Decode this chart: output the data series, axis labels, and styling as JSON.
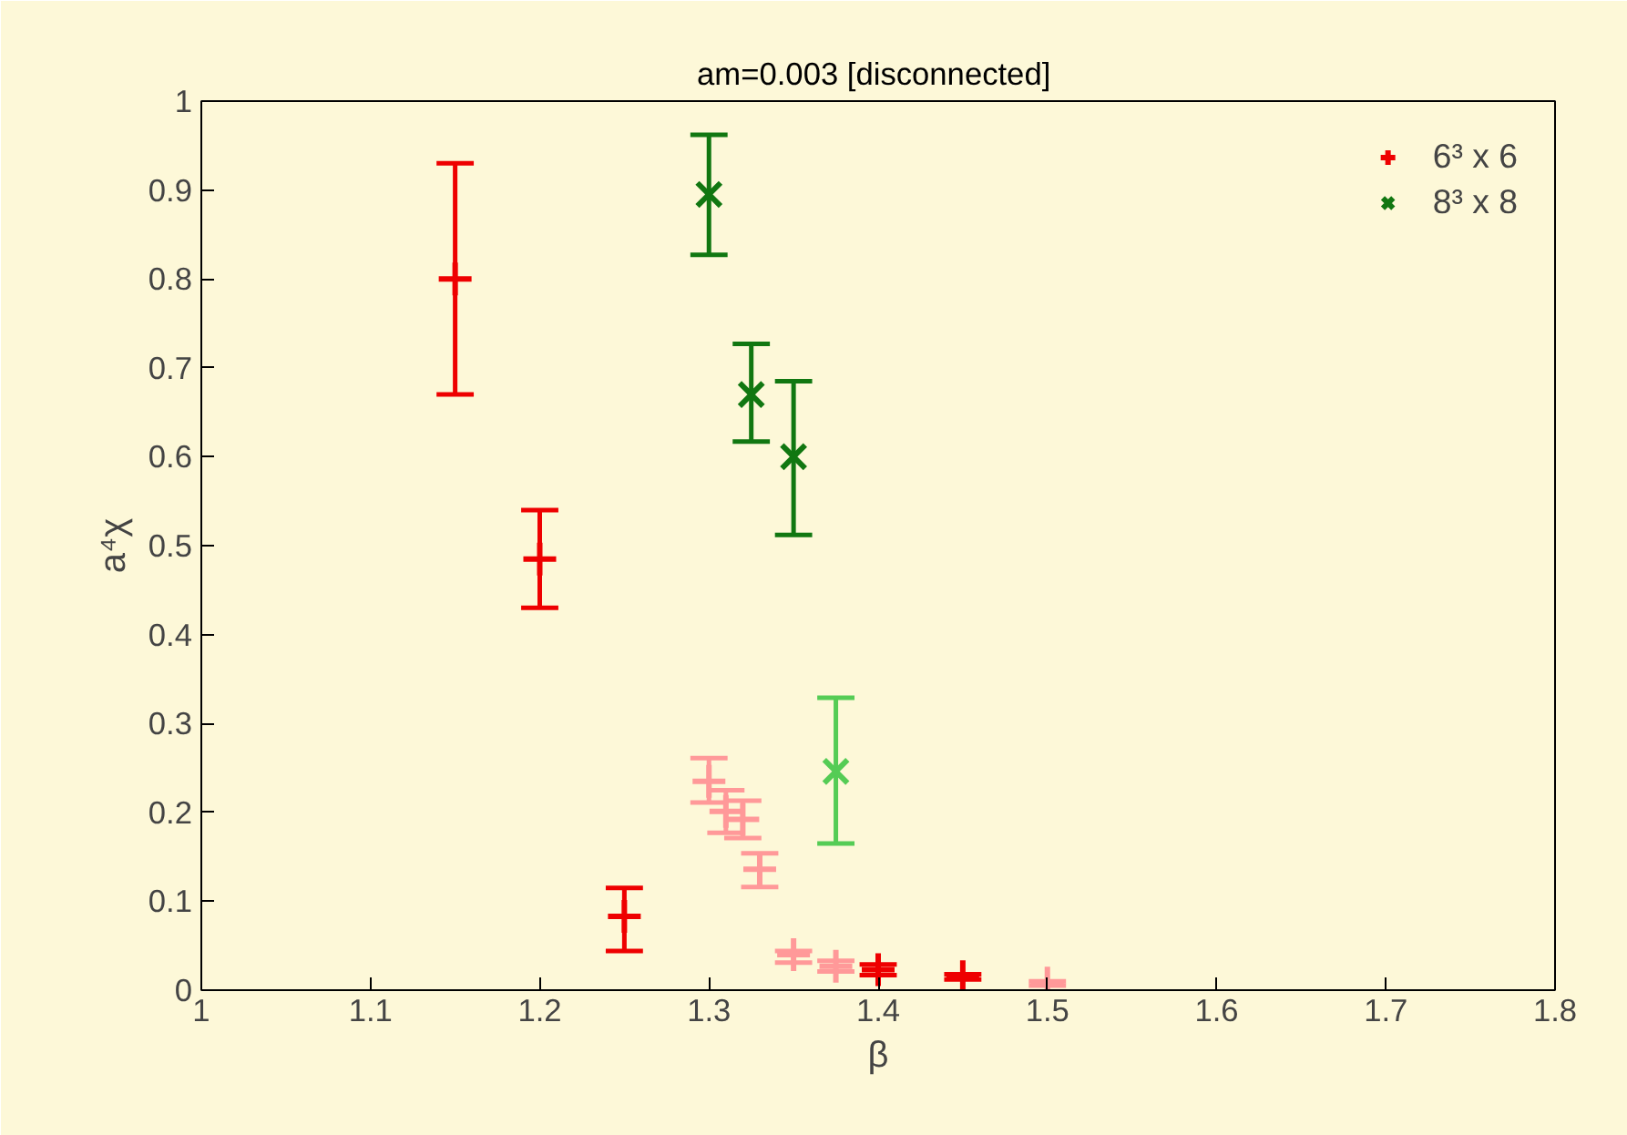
{
  "chart_data": {
    "type": "scatter",
    "title": "am=0.003  [disconnected]",
    "xlabel": "β",
    "ylabel": "a⁴χ",
    "xlim": [
      1,
      1.8
    ],
    "ylim": [
      0,
      1
    ],
    "xticks": [
      1,
      1.1,
      1.2,
      1.3,
      1.4,
      1.5,
      1.6,
      1.7,
      1.8
    ],
    "yticks": [
      0,
      0.1,
      0.2,
      0.3,
      0.4,
      0.5,
      0.6,
      0.7,
      0.8,
      0.9,
      1
    ],
    "grid": false,
    "legend": "top right",
    "series": [
      {
        "name": "6³ x 6",
        "color": "#ee0000",
        "marker": "cross",
        "x": [
          1.15,
          1.2,
          1.25,
          1.4,
          1.45
        ],
        "values": [
          0.8,
          0.485,
          0.083,
          0.023,
          0.015
        ],
        "errors": [
          [
            0.67,
            0.93
          ],
          [
            0.43,
            0.54
          ],
          [
            0.044,
            0.115
          ],
          [
            0.017,
            0.029
          ],
          [
            0.012,
            0.018
          ]
        ]
      },
      {
        "name": "8³ x 8",
        "color": "#117711",
        "marker": "x",
        "x": [
          1.3,
          1.325,
          1.35
        ],
        "values": [
          0.895,
          0.67,
          0.6
        ],
        "errors": [
          [
            0.827,
            0.962
          ],
          [
            0.617,
            0.727
          ],
          [
            0.512,
            0.685
          ]
        ]
      },
      {
        "color": "#ff9999",
        "marker": "cross",
        "x": [
          1.3,
          1.31,
          1.32,
          1.33,
          1.35,
          1.375,
          1.5
        ],
        "values": [
          0.235,
          0.201,
          0.192,
          0.136,
          0.04,
          0.027,
          0.008
        ],
        "errors": [
          [
            0.211,
            0.261
          ],
          [
            0.177,
            0.225
          ],
          [
            0.171,
            0.213
          ],
          [
            0.116,
            0.154
          ],
          [
            0.031,
            0.044
          ],
          [
            0.021,
            0.033
          ],
          [
            0.005,
            0.01
          ]
        ]
      },
      {
        "color": "#55cc55",
        "marker": "x",
        "x": [
          1.375
        ],
        "values": [
          0.246
        ],
        "errors": [
          [
            0.165,
            0.329
          ]
        ]
      }
    ]
  }
}
